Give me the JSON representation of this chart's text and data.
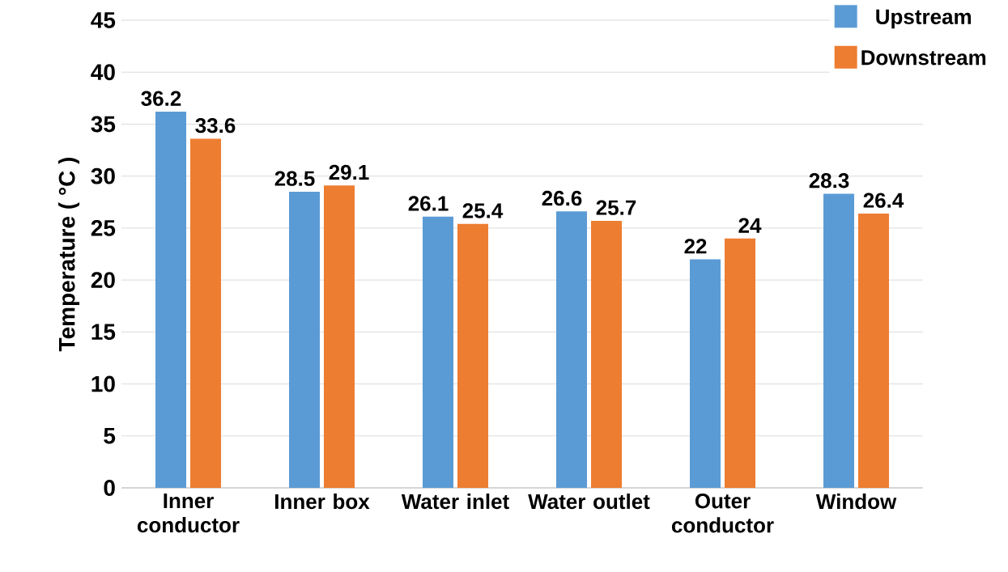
{
  "chart_data": {
    "type": "bar",
    "ylabel": "Temperature ( °C )",
    "categories": [
      "Inner conductor",
      "Inner box",
      "Water inlet",
      "Water outlet",
      "Outer conductor",
      "Window"
    ],
    "series": [
      {
        "name": "Upstream",
        "color": "#5b9bd5",
        "values": [
          36.2,
          28.5,
          26.1,
          26.6,
          22,
          28.3
        ]
      },
      {
        "name": "Downstream",
        "color": "#ed7d31",
        "values": [
          33.6,
          29.1,
          25.4,
          25.7,
          24,
          26.4
        ]
      }
    ],
    "ylim": [
      0,
      45
    ],
    "yticks": [
      0,
      5,
      10,
      15,
      20,
      25,
      30,
      35,
      40,
      45
    ],
    "grid": "y",
    "legend": "top right",
    "data_labels": true
  }
}
